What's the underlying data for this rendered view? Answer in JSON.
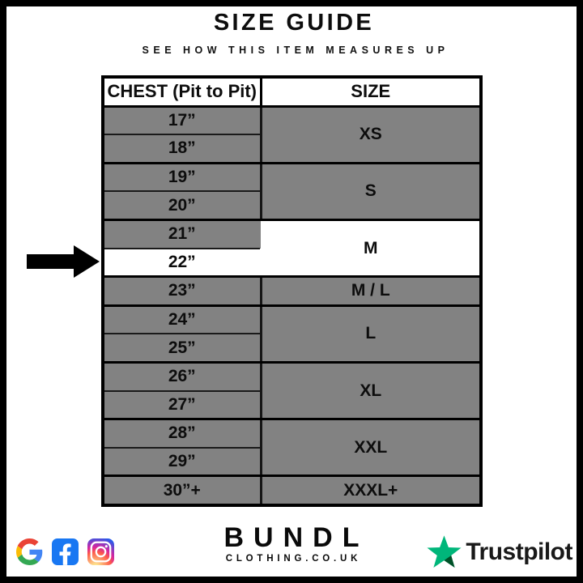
{
  "header": {
    "title": "SIZE GUIDE",
    "subtitle": "SEE HOW THIS ITEM MEASURES UP"
  },
  "table": {
    "columns": [
      "CHEST (Pit to Pit)",
      "SIZE"
    ],
    "groups": [
      {
        "size": "XS",
        "chest": [
          "17”",
          "18”"
        ],
        "highlighted": false
      },
      {
        "size": "S",
        "chest": [
          "19”",
          "20”"
        ],
        "highlighted": false
      },
      {
        "size": "M",
        "chest": [
          "21”",
          "22”"
        ],
        "highlighted": true,
        "highlighted_chest": "22”"
      },
      {
        "size": "M / L",
        "chest": [
          "23”"
        ],
        "highlighted": false
      },
      {
        "size": "L",
        "chest": [
          "24”",
          "25”"
        ],
        "highlighted": false
      },
      {
        "size": "XL",
        "chest": [
          "26”",
          "27”"
        ],
        "highlighted": false
      },
      {
        "size": "XXL",
        "chest": [
          "28”",
          "29”"
        ],
        "highlighted": false
      },
      {
        "size": "XXXL+",
        "chest": [
          "30”+"
        ],
        "highlighted": false
      }
    ],
    "arrow": {
      "icon": "right-arrow-icon",
      "points_to": "22”"
    }
  },
  "chart_data": {
    "type": "table",
    "title": "SIZE GUIDE",
    "subtitle": "SEE HOW THIS ITEM MEASURES UP",
    "columns": [
      "CHEST (Pit to Pit)",
      "SIZE"
    ],
    "rows": [
      [
        "17”",
        "XS"
      ],
      [
        "18”",
        "XS"
      ],
      [
        "19”",
        "S"
      ],
      [
        "20”",
        "S"
      ],
      [
        "21”",
        "M"
      ],
      [
        "22”",
        "M"
      ],
      [
        "23”",
        "M / L"
      ],
      [
        "24”",
        "L"
      ],
      [
        "25”",
        "L"
      ],
      [
        "26”",
        "XL"
      ],
      [
        "27”",
        "XL"
      ],
      [
        "28”",
        "XXL"
      ],
      [
        "29”",
        "XXL"
      ],
      [
        "30”+",
        "XXXL+"
      ]
    ],
    "highlighted_row": [
      "22”",
      "M"
    ],
    "annotation": "black arrow points at the 22” / M row"
  },
  "footer": {
    "brand": {
      "name": "BUNDL",
      "domain": "CLOTHING.CO.UK"
    },
    "social_icons": [
      "google-icon",
      "facebook-icon",
      "instagram-icon"
    ],
    "trustpilot": {
      "label": "Trustpilot"
    }
  },
  "colors": {
    "row_gray": "#828282",
    "highlight_white": "#ffffff",
    "border_black": "#000000",
    "trustpilot_green": "#00b67a",
    "trustpilot_dark_green": "#005128",
    "facebook_blue": "#1877f2"
  }
}
